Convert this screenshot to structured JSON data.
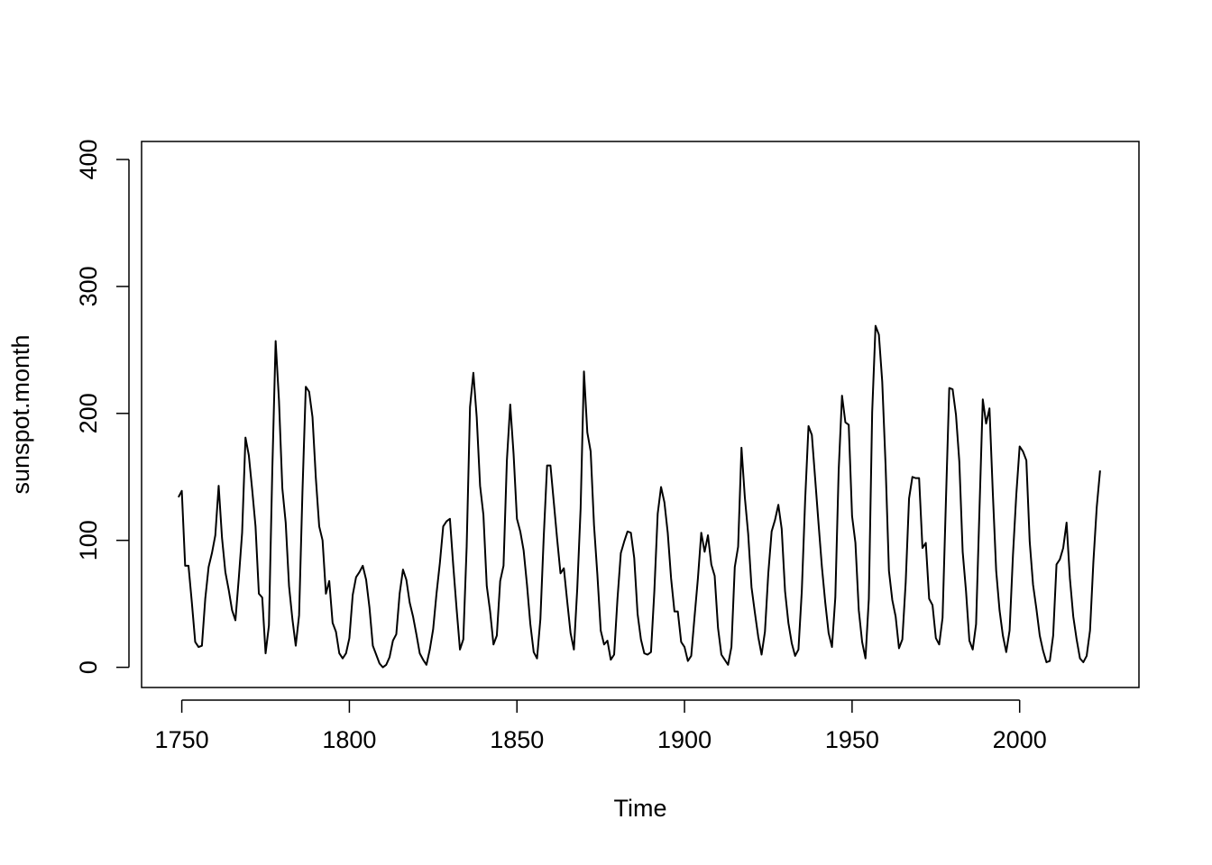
{
  "chart_data": {
    "type": "line",
    "x_label": "Time",
    "y_label": "sunspot.month",
    "xlim": [
      1738,
      2035.6
    ],
    "ylim": [
      -15.9,
      414.2
    ],
    "xticks": [
      1750,
      1800,
      1850,
      1900,
      1950,
      2000
    ],
    "yticks": [
      0,
      100,
      200,
      300,
      400
    ],
    "x": [
      1749,
      1750,
      1751,
      1752,
      1753,
      1754,
      1755,
      1756,
      1757,
      1758,
      1759,
      1760,
      1761,
      1762,
      1763,
      1764,
      1765,
      1766,
      1767,
      1768,
      1769,
      1770,
      1771,
      1772,
      1773,
      1774,
      1775,
      1776,
      1777,
      1778,
      1779,
      1780,
      1781,
      1782,
      1783,
      1784,
      1785,
      1786,
      1787,
      1788,
      1789,
      1790,
      1791,
      1792,
      1793,
      1794,
      1795,
      1796,
      1797,
      1798,
      1799,
      1800,
      1801,
      1802,
      1803,
      1804,
      1805,
      1806,
      1807,
      1808,
      1809,
      1810,
      1811,
      1812,
      1813,
      1814,
      1815,
      1816,
      1817,
      1818,
      1819,
      1820,
      1821,
      1822,
      1823,
      1824,
      1825,
      1826,
      1827,
      1828,
      1829,
      1830,
      1831,
      1832,
      1833,
      1834,
      1835,
      1836,
      1837,
      1838,
      1839,
      1840,
      1841,
      1842,
      1843,
      1844,
      1845,
      1846,
      1847,
      1848,
      1849,
      1850,
      1851,
      1852,
      1853,
      1854,
      1855,
      1856,
      1857,
      1858,
      1859,
      1860,
      1861,
      1862,
      1863,
      1864,
      1865,
      1866,
      1867,
      1868,
      1869,
      1870,
      1871,
      1872,
      1873,
      1874,
      1875,
      1876,
      1877,
      1878,
      1879,
      1880,
      1881,
      1882,
      1883,
      1884,
      1885,
      1886,
      1887,
      1888,
      1889,
      1890,
      1891,
      1892,
      1893,
      1894,
      1895,
      1896,
      1897,
      1898,
      1899,
      1900,
      1901,
      1902,
      1903,
      1904,
      1905,
      1906,
      1907,
      1908,
      1909,
      1910,
      1911,
      1912,
      1913,
      1914,
      1915,
      1916,
      1917,
      1918,
      1919,
      1920,
      1921,
      1922,
      1923,
      1924,
      1925,
      1926,
      1927,
      1928,
      1929,
      1930,
      1931,
      1932,
      1933,
      1934,
      1935,
      1936,
      1937,
      1938,
      1939,
      1940,
      1941,
      1942,
      1943,
      1944,
      1945,
      1946,
      1947,
      1948,
      1949,
      1950,
      1951,
      1952,
      1953,
      1954,
      1955,
      1956,
      1957,
      1958,
      1959,
      1960,
      1961,
      1962,
      1963,
      1964,
      1965,
      1966,
      1967,
      1968,
      1969,
      1970,
      1971,
      1972,
      1973,
      1974,
      1975,
      1976,
      1977,
      1978,
      1979,
      1980,
      1981,
      1982,
      1983,
      1984,
      1985,
      1986,
      1987,
      1988,
      1989,
      1990,
      1991,
      1992,
      1993,
      1994,
      1995,
      1996,
      1997,
      1998,
      1999,
      2000,
      2001,
      2002,
      2003,
      2004,
      2005,
      2006,
      2007,
      2008,
      2009,
      2010,
      2011,
      2012,
      2013,
      2014,
      2015,
      2016,
      2017,
      2018,
      2019,
      2020,
      2021,
      2022,
      2023,
      2024
    ],
    "series": [
      {
        "color": "#000000",
        "values": [
          134,
          139,
          80,
          80,
          51,
          20,
          16,
          17,
          54,
          79,
          90,
          104,
          143,
          102,
          75,
          61,
          45,
          37,
          70,
          106,
          181,
          167,
          140,
          111,
          58,
          55,
          11,
          33,
          155,
          257,
          210,
          141,
          114,
          64,
          38,
          17,
          41,
          138,
          221,
          217,
          197,
          149,
          111,
          100,
          58,
          68,
          35,
          28,
          11,
          7,
          11,
          23,
          57,
          71,
          75,
          80,
          69,
          47,
          17,
          10,
          3,
          0,
          2,
          8,
          21,
          26,
          58,
          77,
          69,
          51,
          40,
          26,
          11,
          6,
          2,
          14,
          30,
          58,
          82,
          111,
          115,
          117,
          80,
          46,
          14,
          22,
          95,
          205,
          232,
          197,
          143,
          120,
          64,
          44,
          18,
          25,
          68,
          80,
          163,
          207,
          168,
          117,
          107,
          92,
          65,
          34,
          12,
          7,
          38,
          103,
          159,
          159,
          130,
          101,
          74,
          78,
          52,
          27,
          14,
          62,
          125,
          233,
          185,
          170,
          112,
          73,
          29,
          18,
          21,
          6,
          10,
          54,
          90,
          99,
          107,
          106,
          86,
          42,
          22,
          11,
          10,
          12,
          60,
          121,
          142,
          130,
          106,
          70,
          44,
          44,
          20,
          16,
          5,
          9,
          40,
          70,
          106,
          91,
          104,
          81,
          72,
          31,
          10,
          6,
          2,
          16,
          79,
          95,
          173,
          134,
          105,
          63,
          43,
          24,
          10,
          28,
          74,
          107,
          116,
          128,
          109,
          60,
          35,
          19,
          9,
          14,
          60,
          132,
          190,
          183,
          148,
          113,
          79,
          51,
          27,
          16,
          55,
          155,
          214,
          193,
          191,
          119,
          98,
          45,
          20,
          7,
          54,
          201,
          269,
          262,
          225,
          159,
          76,
          53,
          40,
          15,
          22,
          67,
          133,
          150,
          149,
          149,
          94,
          98,
          54,
          49,
          23,
          18,
          39,
          131,
          220,
          219,
          199,
          162,
          91,
          60,
          21,
          14,
          34,
          123,
          211,
          192,
          204,
          137,
          76,
          45,
          25,
          12,
          29,
          88,
          136,
          174,
          170,
          163,
          99,
          65,
          46,
          25,
          13,
          4,
          5,
          25,
          81,
          85,
          94,
          114,
          70,
          40,
          22,
          7,
          4,
          9,
          29,
          83,
          126,
          155
        ]
      }
    ]
  }
}
